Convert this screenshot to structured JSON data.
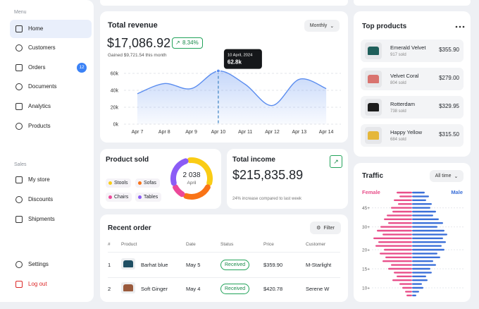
{
  "sidebar": {
    "menu_heading": "Menu",
    "menu_items": [
      "Home",
      "Customers",
      "Orders",
      "Documents",
      "Analytics",
      "Products"
    ],
    "orders_badge": 12,
    "sales_heading": "Sales",
    "sales_items": [
      "My store",
      "Discounts",
      "Shipments"
    ],
    "settings": "Settings",
    "logout": "Log out"
  },
  "revenue": {
    "title": "Total revenue",
    "period": "Monthly",
    "amount": "$17,086.92",
    "change": "8.34%",
    "gained": "Gained $9,721.54 this month",
    "chart": {
      "type": "line",
      "categories": [
        "Apr 7",
        "Apr 8",
        "Apr 9",
        "Apr 10",
        "Apr 11",
        "Apr 12",
        "Apr 13",
        "Apr 14"
      ],
      "values": [
        36,
        48,
        42,
        62.8,
        47,
        22,
        53,
        42
      ],
      "value_labels": [
        null,
        null,
        null,
        "62.8k",
        null,
        null,
        null,
        null
      ],
      "tooltip_date": "10 April, 2024",
      "color": "#5b8def",
      "ylim": [
        0,
        70
      ],
      "yticks": [
        {
          "value": 0,
          "label": "0k"
        },
        {
          "value": 20,
          "label": "20k"
        },
        {
          "value": 40,
          "label": "40k"
        },
        {
          "value": 60,
          "label": "60k"
        }
      ],
      "grid": true
    }
  },
  "top_products": {
    "title": "Top products",
    "items": [
      {
        "name": "Emerald Velvet",
        "sold": "917 sold",
        "price": "$355.90",
        "color": "#1f5f5b"
      },
      {
        "name": "Velvet Coral",
        "sold": "804 sold",
        "price": "$279.00",
        "color": "#d9736f"
      },
      {
        "name": "Rotterdam",
        "sold": "738 sold",
        "price": "$329.95",
        "color": "#1c1c1c"
      },
      {
        "name": "Happy Yellow",
        "sold": "684 sold",
        "price": "$315.50",
        "color": "#e5b73b"
      }
    ]
  },
  "product_sold": {
    "title": "Product sold",
    "total": "2 038",
    "period": "April",
    "chart": {
      "type": "donut",
      "categories": [
        "Stools",
        "Sofas",
        "Chairs",
        "Tables"
      ],
      "values": [
        36,
        26,
        10,
        28
      ],
      "colors": [
        "#facc15",
        "#f97316",
        "#ec4899",
        "#8b5cf6"
      ]
    }
  },
  "total_income": {
    "title": "Total income",
    "amount": "$215,835.89",
    "note": "24% increase compared to last week"
  },
  "traffic": {
    "title": "Traffic",
    "period": "All time",
    "age_labels": [
      "45+",
      "30+",
      "20+",
      "15+",
      "10+"
    ],
    "chart": {
      "type": "pyramid",
      "series": [
        {
          "name": "Female",
          "color": "#e84f8a",
          "values": [
            22,
            18,
            26,
            20,
            30,
            28,
            36,
            40,
            34,
            45,
            50,
            42,
            55,
            48,
            52,
            40,
            46,
            38,
            42,
            30,
            34,
            26,
            22,
            28,
            18,
            14,
            10,
            8
          ]
        },
        {
          "name": "Male",
          "color": "#3b6fd8",
          "values": [
            18,
            24,
            20,
            28,
            26,
            34,
            30,
            38,
            44,
            36,
            46,
            50,
            44,
            48,
            42,
            46,
            36,
            40,
            30,
            34,
            26,
            28,
            20,
            22,
            14,
            16,
            10,
            6
          ]
        }
      ]
    }
  },
  "recent_orders": {
    "title": "Recent order",
    "filter": "Filter",
    "columns": [
      "#",
      "Product",
      "Date",
      "Status",
      "Price",
      "Customer"
    ],
    "rows": [
      [
        1,
        "Barhat blue",
        "May 5",
        "Received",
        "$359.90",
        "M-Starlight"
      ],
      [
        2,
        "Soft Ginger",
        "May 4",
        "Received",
        "$420.78",
        "Serene W"
      ]
    ]
  }
}
